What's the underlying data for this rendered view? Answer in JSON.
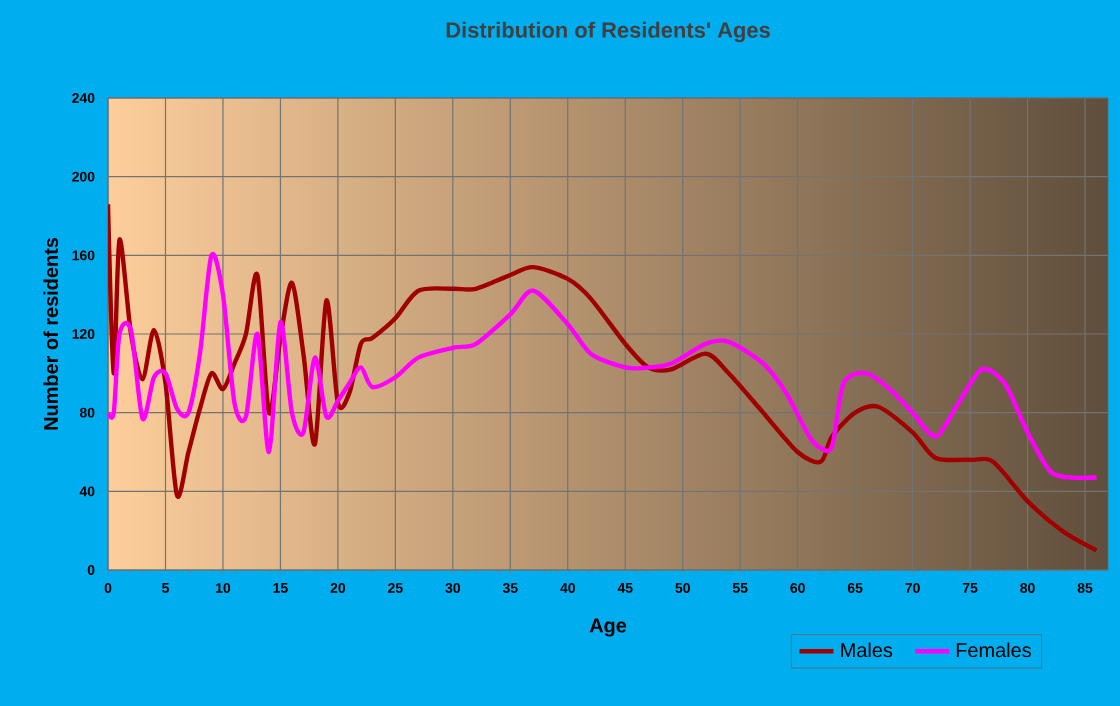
{
  "chart_data": {
    "type": "line",
    "title": "Distribution of Residents' Ages",
    "xlabel": "Age",
    "ylabel": "Number of residents",
    "xlim": [
      0,
      87
    ],
    "xticks": [
      0,
      5,
      10,
      15,
      20,
      25,
      30,
      35,
      40,
      45,
      50,
      55,
      60,
      65,
      70,
      75,
      80,
      85
    ],
    "ylim": [
      0,
      240
    ],
    "yticks": [
      0,
      40,
      80,
      120,
      160,
      200,
      240
    ],
    "grid": true,
    "legend": "bottom right",
    "marker": "none",
    "line_style": "solid",
    "series": [
      {
        "name": "Males",
        "color": "#a00000",
        "x": [
          0,
          0.5,
          1,
          2,
          3,
          4,
          5,
          6,
          7,
          8,
          9,
          10,
          11,
          12,
          13,
          14,
          15,
          16,
          17,
          18,
          19,
          20,
          21,
          22,
          23,
          25,
          27,
          30,
          32,
          35,
          37,
          40,
          42,
          45,
          47,
          49,
          52,
          54,
          57,
          60,
          62,
          63,
          65,
          67,
          70,
          72,
          75,
          77,
          80,
          83,
          86
        ],
        "values": [
          186,
          100,
          168,
          120,
          97,
          122,
          95,
          38,
          60,
          82,
          100,
          92,
          105,
          120,
          150,
          80,
          118,
          146,
          110,
          64,
          137,
          85,
          90,
          115,
          118,
          128,
          142,
          143,
          143,
          150,
          154,
          148,
          138,
          115,
          103,
          102,
          110,
          100,
          80,
          60,
          55,
          68,
          80,
          83,
          70,
          57,
          56,
          55,
          35,
          20,
          10
        ]
      },
      {
        "name": "Females",
        "color": "#ff00ff",
        "x": [
          0,
          0.5,
          1,
          2,
          3,
          4,
          5,
          6,
          7,
          8,
          9,
          10,
          11,
          12,
          13,
          14,
          15,
          16,
          17,
          18,
          19,
          20,
          21,
          22,
          23,
          25,
          27,
          30,
          32,
          35,
          37,
          40,
          42,
          45,
          47,
          49,
          52,
          54,
          57,
          59,
          61,
          62,
          63,
          64,
          66,
          68,
          70,
          72,
          74,
          76,
          78,
          80,
          82,
          84,
          86
        ],
        "values": [
          80,
          80,
          120,
          122,
          77,
          98,
          100,
          82,
          80,
          110,
          160,
          140,
          85,
          78,
          120,
          60,
          126,
          80,
          70,
          108,
          78,
          86,
          95,
          103,
          93,
          98,
          108,
          113,
          115,
          130,
          142,
          125,
          110,
          103,
          103,
          105,
          115,
          116,
          105,
          90,
          68,
          62,
          63,
          95,
          100,
          92,
          80,
          68,
          85,
          102,
          95,
          70,
          50,
          47,
          47
        ]
      }
    ]
  }
}
